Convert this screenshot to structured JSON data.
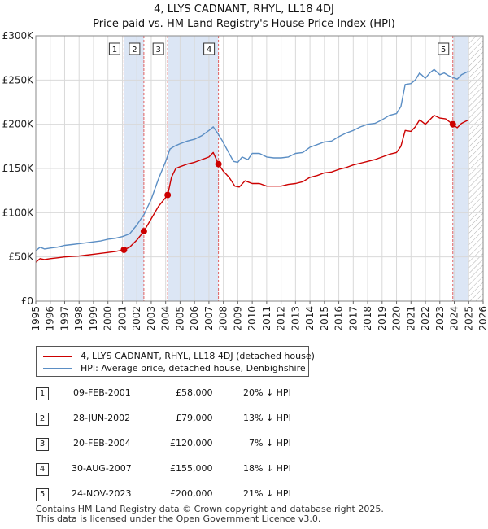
{
  "title_line1": "4, LLYS CADNANT, RHYL, LL18 4DJ",
  "title_line2": "Price paid vs. HM Land Registry's House Price Index (HPI)",
  "legend": {
    "items": [
      {
        "label": "4, LLYS CADNANT, RHYL, LL18 4DJ (detached house)",
        "color": "#cc0000"
      },
      {
        "label": "HPI: Average price, detached house, Denbighshire",
        "color": "#5b8ec4"
      }
    ]
  },
  "transactions": [
    {
      "num": "1",
      "date": "09-FEB-2001",
      "price": "£58,000",
      "hpi": "20% ↓ HPI"
    },
    {
      "num": "2",
      "date": "28-JUN-2002",
      "price": "£79,000",
      "hpi": "13% ↓ HPI"
    },
    {
      "num": "3",
      "date": "20-FEB-2004",
      "price": "£120,000",
      "hpi": "7% ↓ HPI"
    },
    {
      "num": "4",
      "date": "30-AUG-2007",
      "price": "£155,000",
      "hpi": "18% ↓ HPI"
    },
    {
      "num": "5",
      "date": "24-NOV-2023",
      "price": "£200,000",
      "hpi": "21% ↓ HPI"
    }
  ],
  "footer_line1": "Contains HM Land Registry data © Crown copyright and database right 2025.",
  "footer_line2": "This data is licensed under the Open Government Licence v3.0.",
  "colors": {
    "price_line": "#cc0000",
    "hpi_line": "#5b8ec4",
    "shade": "#dce6f5",
    "marker_line": "#e06060"
  },
  "chart_data": {
    "type": "line",
    "title": "Price paid vs. HM Land Registry's House Price Index (HPI)",
    "xlim": [
      1995,
      2026
    ],
    "ylim": [
      0,
      300000
    ],
    "x_ticks": [
      "1995",
      "1996",
      "1997",
      "1998",
      "1999",
      "2000",
      "2001",
      "2002",
      "2003",
      "2004",
      "2005",
      "2006",
      "2007",
      "2008",
      "2009",
      "2010",
      "2011",
      "2012",
      "2013",
      "2014",
      "2015",
      "2016",
      "2017",
      "2018",
      "2019",
      "2020",
      "2021",
      "2022",
      "2023",
      "2024",
      "2025",
      "2026"
    ],
    "y_ticks": [
      {
        "value": 0,
        "label": "£0"
      },
      {
        "value": 50000,
        "label": "£50K"
      },
      {
        "value": 100000,
        "label": "£100K"
      },
      {
        "value": 150000,
        "label": "£150K"
      },
      {
        "value": 200000,
        "label": "£200K"
      },
      {
        "value": 250000,
        "label": "£250K"
      },
      {
        "value": 300000,
        "label": "£300K"
      }
    ],
    "shaded_ranges": [
      [
        2001.11,
        2002.49
      ],
      [
        2004.14,
        2007.66
      ],
      [
        2023.9,
        2025.0
      ]
    ],
    "hatched_range": [
      2025.0,
      2026.0
    ],
    "series": [
      {
        "name": "HPI: Average price, detached house, Denbighshire",
        "x": [
          1995.0,
          1995.3,
          1995.6,
          1996.0,
          1996.5,
          1997.0,
          1997.5,
          1998.0,
          1998.5,
          1999.0,
          1999.5,
          2000.0,
          2000.5,
          2001.0,
          2001.5,
          2002.0,
          2002.5,
          2003.0,
          2003.5,
          2004.0,
          2004.3,
          2004.6,
          2005.0,
          2005.5,
          2006.0,
          2006.5,
          2007.0,
          2007.3,
          2007.6,
          2007.9,
          2008.3,
          2008.7,
          2009.0,
          2009.3,
          2009.7,
          2010.0,
          2010.5,
          2011.0,
          2011.5,
          2012.0,
          2012.5,
          2013.0,
          2013.5,
          2014.0,
          2014.5,
          2015.0,
          2015.5,
          2016.0,
          2016.5,
          2017.0,
          2017.5,
          2018.0,
          2018.5,
          2019.0,
          2019.5,
          2020.0,
          2020.3,
          2020.6,
          2021.0,
          2021.3,
          2021.6,
          2022.0,
          2022.3,
          2022.6,
          2023.0,
          2023.3,
          2023.6,
          2023.9,
          2024.2,
          2024.5,
          2024.75,
          2025.0
        ],
        "values": [
          57000,
          61000,
          59000,
          60000,
          61000,
          63000,
          64000,
          65000,
          66000,
          67000,
          68000,
          70000,
          71000,
          73000,
          76000,
          86000,
          98000,
          115000,
          138000,
          158000,
          172000,
          175000,
          178000,
          181000,
          183000,
          187000,
          193000,
          197000,
          190000,
          182000,
          170000,
          158000,
          157000,
          163000,
          160000,
          167000,
          167000,
          163000,
          162000,
          162000,
          163000,
          167000,
          168000,
          174000,
          177000,
          180000,
          181000,
          186000,
          190000,
          193000,
          197000,
          200000,
          201000,
          205000,
          210000,
          212000,
          220000,
          245000,
          246000,
          250000,
          258000,
          252000,
          258000,
          262000,
          256000,
          258000,
          255000,
          253000,
          251000,
          256000,
          258000,
          260000
        ]
      },
      {
        "name": "4, LLYS CADNANT, RHYL, LL18 4DJ (detached house)",
        "x": [
          1995.0,
          1995.3,
          1995.6,
          1996.0,
          1996.5,
          1997.0,
          1997.5,
          1998.0,
          1998.5,
          1999.0,
          1999.5,
          2000.0,
          2000.5,
          2001.11,
          2001.5,
          2002.0,
          2002.49,
          2003.0,
          2003.5,
          2004.14,
          2004.4,
          2004.7,
          2005.0,
          2005.5,
          2006.0,
          2006.5,
          2007.0,
          2007.3,
          2007.66,
          2008.0,
          2008.4,
          2008.8,
          2009.1,
          2009.5,
          2010.0,
          2010.5,
          2011.0,
          2011.5,
          2012.0,
          2012.5,
          2013.0,
          2013.5,
          2014.0,
          2014.5,
          2015.0,
          2015.5,
          2016.0,
          2016.5,
          2017.0,
          2017.5,
          2018.0,
          2018.5,
          2019.0,
          2019.5,
          2020.0,
          2020.3,
          2020.6,
          2021.0,
          2021.3,
          2021.6,
          2022.0,
          2022.3,
          2022.6,
          2023.0,
          2023.4,
          2023.9,
          2024.2,
          2024.5,
          2024.75,
          2025.0
        ],
        "values": [
          44000,
          48000,
          47000,
          48000,
          49000,
          50000,
          50500,
          51000,
          52000,
          53000,
          54000,
          55000,
          56000,
          58000,
          61000,
          69000,
          79000,
          93000,
          107000,
          120000,
          140000,
          150000,
          152000,
          155000,
          157000,
          160000,
          163000,
          168000,
          155000,
          147000,
          140000,
          130000,
          129000,
          136000,
          133000,
          133000,
          130000,
          130000,
          130000,
          132000,
          133000,
          135000,
          140000,
          142000,
          145000,
          146000,
          149000,
          151000,
          154000,
          156000,
          158000,
          160000,
          163000,
          166000,
          168000,
          175000,
          193000,
          192000,
          197000,
          205000,
          200000,
          205000,
          210000,
          207000,
          206000,
          200000,
          196000,
          201000,
          203000,
          205000
        ]
      }
    ],
    "sales": [
      {
        "label": "1",
        "x": 2001.11,
        "value": 58000
      },
      {
        "label": "2",
        "x": 2002.49,
        "value": 79000
      },
      {
        "label": "3",
        "x": 2004.14,
        "value": 120000
      },
      {
        "label": "4",
        "x": 2007.66,
        "value": 155000
      },
      {
        "label": "5",
        "x": 2023.9,
        "value": 200000
      }
    ]
  }
}
